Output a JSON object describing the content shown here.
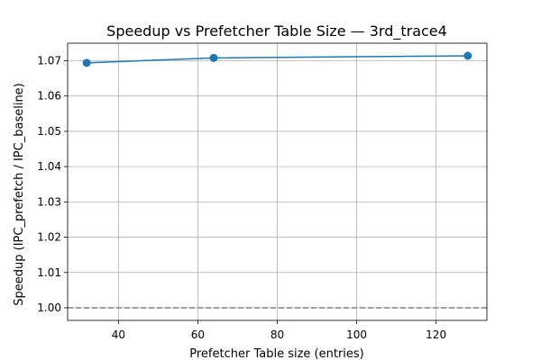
{
  "chart_data": {
    "type": "line",
    "title": "Speedup vs Prefetcher Table Size — 3rd_trace4",
    "xlabel": "Prefetcher Table size (entries)",
    "ylabel": "Speedup (IPC_prefetch / IPC_baseline)",
    "x": [
      32,
      64,
      128
    ],
    "series": [
      {
        "values": [
          1.0694,
          1.0708,
          1.0714
        ]
      }
    ],
    "xlim": [
      27.2,
      132.8
    ],
    "ylim": [
      0.99643,
      1.07497
    ],
    "xticks": [
      40,
      60,
      80,
      100,
      120
    ],
    "yticks": [
      1.0,
      1.01,
      1.02,
      1.03,
      1.04,
      1.05,
      1.06,
      1.07
    ],
    "xtick_labels": [
      "40",
      "60",
      "80",
      "100",
      "120"
    ],
    "ytick_labels": [
      "1.00",
      "1.01",
      "1.02",
      "1.03",
      "1.04",
      "1.05",
      "1.06",
      "1.07"
    ],
    "reference_line": {
      "y": 1.0,
      "style": "dashed",
      "color": "#808080"
    },
    "grid": true,
    "legend": "none",
    "colors": {
      "series": "#1f77b4",
      "grid": "#b0b0b0"
    }
  }
}
